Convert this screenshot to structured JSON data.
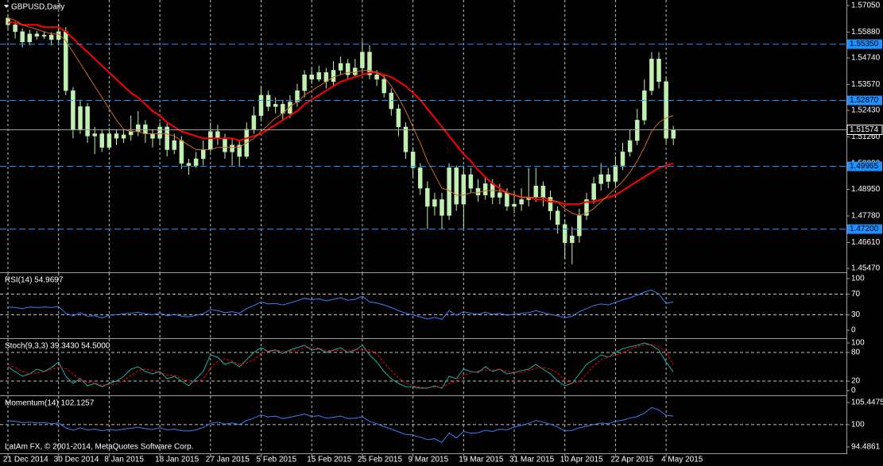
{
  "copyright": "LatAm FX, © 2001-2014, MetaQuotes Software Corp.",
  "chart_data": [
    {
      "type": "candlestick",
      "title": "GBPUSD,Daily",
      "grid": true,
      "color": "#c0f0b0",
      "categories": [
        "21 Dec 2014",
        null,
        null,
        null,
        null,
        null,
        null,
        "30 Dec 2014",
        null,
        null,
        null,
        null,
        null,
        null,
        "8 Jan 2015",
        null,
        null,
        null,
        null,
        null,
        null,
        "18 Jan 2015",
        null,
        null,
        null,
        null,
        null,
        null,
        "27 Jan 2015",
        null,
        null,
        null,
        null,
        null,
        null,
        "5 Feb 2015",
        null,
        null,
        null,
        null,
        null,
        null,
        "15 Feb 2015",
        null,
        null,
        null,
        null,
        null,
        null,
        "25 Feb 2015",
        null,
        null,
        null,
        null,
        null,
        null,
        "9 Mar 2015",
        null,
        null,
        null,
        null,
        null,
        null,
        "19 Mar 2015",
        null,
        null,
        null,
        null,
        null,
        null,
        "31 Mar 2015",
        null,
        null,
        null,
        null,
        null,
        null,
        "10 Apr 2015",
        null,
        null,
        null,
        null,
        null,
        null,
        "22 Apr 2015",
        null,
        null,
        null,
        null,
        null,
        null,
        "4 May 2015",
        null
      ],
      "open": [
        1.565,
        1.562,
        1.559,
        1.5545,
        1.558,
        1.557,
        1.5575,
        1.5555,
        1.559,
        1.533,
        1.516,
        1.526,
        1.513,
        1.514,
        1.508,
        1.514,
        1.512,
        1.5135,
        1.515,
        1.518,
        1.514,
        1.512,
        1.517,
        1.507,
        1.511,
        1.501,
        1.5,
        1.503,
        1.507,
        1.515,
        1.512,
        1.506,
        1.509,
        1.504,
        1.516,
        1.522,
        1.531,
        1.526,
        1.527,
        1.523,
        1.528,
        1.533,
        1.54,
        1.538,
        1.541,
        1.537,
        1.542,
        1.545,
        1.54,
        1.543,
        1.55,
        1.54,
        1.538,
        1.532,
        1.525,
        1.517,
        1.506,
        1.499,
        1.49,
        1.482,
        1.485,
        1.478,
        1.499,
        1.483,
        1.496,
        1.49,
        1.487,
        1.492,
        1.486,
        1.488,
        1.482,
        1.483,
        1.485,
        1.486,
        1.491,
        1.486,
        1.48,
        1.474,
        1.466,
        1.469,
        1.478,
        1.485,
        1.492,
        1.496,
        1.493,
        1.5,
        1.506,
        1.511,
        1.52,
        1.533,
        1.547,
        1.537,
        1.512
      ],
      "high": [
        1.5668,
        1.5635,
        1.5605,
        1.5598,
        1.5592,
        1.559,
        1.5588,
        1.562,
        1.561,
        1.5345,
        1.529,
        1.5275,
        1.517,
        1.516,
        1.5165,
        1.516,
        1.516,
        1.522,
        1.524,
        1.52,
        1.516,
        1.519,
        1.5185,
        1.514,
        1.513,
        1.503,
        1.506,
        1.511,
        1.519,
        1.518,
        1.514,
        1.512,
        1.511,
        1.519,
        1.526,
        1.535,
        1.533,
        1.53,
        1.529,
        1.531,
        1.536,
        1.542,
        1.543,
        1.544,
        1.543,
        1.546,
        1.548,
        1.547,
        1.547,
        1.555,
        1.553,
        1.542,
        1.54,
        1.534,
        1.527,
        1.519,
        1.508,
        1.501,
        1.493,
        1.488,
        1.488,
        1.501,
        1.5,
        1.5,
        1.499,
        1.494,
        1.495,
        1.494,
        1.492,
        1.49,
        1.488,
        1.49,
        1.499,
        1.499,
        1.493,
        1.489,
        1.482,
        1.476,
        1.473,
        1.481,
        1.488,
        1.495,
        1.501,
        1.499,
        1.504,
        1.51,
        1.516,
        1.525,
        1.538,
        1.55,
        1.55,
        1.539,
        1.5175
      ],
      "low": [
        1.56,
        1.556,
        1.552,
        1.553,
        1.5555,
        1.5558,
        1.553,
        1.554,
        1.531,
        1.512,
        1.514,
        1.51,
        1.505,
        1.506,
        1.507,
        1.509,
        1.51,
        1.511,
        1.513,
        1.51,
        1.508,
        1.509,
        1.504,
        1.505,
        1.4985,
        1.496,
        1.499,
        1.5,
        1.506,
        1.509,
        1.503,
        1.5,
        1.4995,
        1.503,
        1.514,
        1.52,
        1.524,
        1.523,
        1.52,
        1.521,
        1.526,
        1.53,
        1.536,
        1.537,
        1.534,
        1.535,
        1.54,
        1.538,
        1.539,
        1.541,
        1.538,
        1.535,
        1.53,
        1.522,
        1.513,
        1.503,
        1.495,
        1.487,
        1.472,
        1.478,
        1.472,
        1.476,
        1.48,
        1.472,
        1.488,
        1.484,
        1.485,
        1.483,
        1.483,
        1.48,
        1.479,
        1.48,
        1.482,
        1.484,
        1.482,
        1.476,
        1.47,
        1.459,
        1.4565,
        1.466,
        1.476,
        1.483,
        1.489,
        1.49,
        1.491,
        1.498,
        1.504,
        1.509,
        1.518,
        1.531,
        1.534,
        1.51,
        1.509
      ],
      "close": [
        1.562,
        1.559,
        1.5545,
        1.558,
        1.557,
        1.5575,
        1.5555,
        1.559,
        1.533,
        1.516,
        1.526,
        1.513,
        1.514,
        1.508,
        1.514,
        1.512,
        1.5135,
        1.515,
        1.518,
        1.514,
        1.512,
        1.517,
        1.507,
        1.511,
        1.501,
        1.5,
        1.503,
        1.507,
        1.515,
        1.512,
        1.506,
        1.509,
        1.504,
        1.516,
        1.522,
        1.531,
        1.526,
        1.527,
        1.523,
        1.528,
        1.533,
        1.54,
        1.538,
        1.541,
        1.537,
        1.542,
        1.545,
        1.54,
        1.543,
        1.55,
        1.54,
        1.538,
        1.532,
        1.525,
        1.517,
        1.506,
        1.499,
        1.49,
        1.482,
        1.485,
        1.478,
        1.499,
        1.483,
        1.496,
        1.49,
        1.487,
        1.492,
        1.486,
        1.488,
        1.482,
        1.483,
        1.485,
        1.486,
        1.491,
        1.486,
        1.48,
        1.474,
        1.466,
        1.469,
        1.478,
        1.485,
        1.492,
        1.496,
        1.493,
        1.5,
        1.506,
        1.511,
        1.52,
        1.533,
        1.547,
        1.537,
        1.512,
        1.5157
      ],
      "lines": [
        {
          "color": "#ff0000",
          "width": 2,
          "values": [
            1.563,
            1.563,
            1.562,
            1.562,
            1.562,
            1.561,
            1.561,
            1.561,
            1.559,
            1.556,
            1.553,
            1.55,
            1.547,
            1.544,
            1.541,
            1.538,
            1.535,
            1.532,
            1.53,
            1.527,
            1.524,
            1.522,
            1.519,
            1.517,
            1.515,
            1.514,
            1.513,
            1.512,
            1.512,
            1.512,
            1.512,
            1.512,
            1.511,
            1.512,
            1.513,
            1.514,
            1.516,
            1.518,
            1.52,
            1.522,
            1.524,
            1.527,
            1.529,
            1.531,
            1.533,
            1.535,
            1.537,
            1.538,
            1.539,
            1.54,
            1.541,
            1.541,
            1.54,
            1.539,
            1.537,
            1.535,
            1.532,
            1.529,
            1.525,
            1.521,
            1.517,
            1.513,
            1.509,
            1.505,
            1.502,
            1.498,
            1.495,
            1.492,
            1.49,
            1.488,
            1.487,
            1.486,
            1.486,
            1.485,
            1.485,
            1.484,
            1.484,
            1.483,
            1.483,
            1.483,
            1.484,
            1.484,
            1.485,
            1.486,
            1.487,
            1.489,
            1.491,
            1.493,
            1.495,
            1.497,
            1.499,
            1.5,
            1.501
          ]
        },
        {
          "color": "#d2691e",
          "width": 1,
          "values": [
            1.565,
            1.564,
            1.562,
            1.561,
            1.56,
            1.559,
            1.558,
            1.558,
            1.555,
            1.55,
            1.545,
            1.54,
            1.535,
            1.53,
            1.525,
            1.52,
            1.516,
            1.515,
            1.515,
            1.514,
            1.514,
            1.514,
            1.514,
            1.513,
            1.511,
            1.509,
            1.507,
            1.507,
            1.507,
            1.508,
            1.508,
            1.508,
            1.508,
            1.51,
            1.512,
            1.515,
            1.518,
            1.521,
            1.523,
            1.526,
            1.528,
            1.531,
            1.533,
            1.535,
            1.537,
            1.539,
            1.54,
            1.541,
            1.541,
            1.542,
            1.542,
            1.541,
            1.539,
            1.535,
            1.53,
            1.524,
            1.517,
            1.51,
            1.502,
            1.496,
            1.49,
            1.489,
            1.487,
            1.487,
            1.488,
            1.488,
            1.489,
            1.489,
            1.489,
            1.488,
            1.487,
            1.486,
            1.486,
            1.486,
            1.486,
            1.485,
            1.484,
            1.481,
            1.479,
            1.478,
            1.479,
            1.481,
            1.484,
            1.487,
            1.49,
            1.493,
            1.497,
            1.502,
            1.508,
            1.515,
            1.519,
            1.521,
            1.522
          ]
        }
      ],
      "levels": [
        {
          "value": 1.5535,
          "label": "1.55350"
        },
        {
          "value": 1.5287,
          "label": "1.52870"
        },
        {
          "value": 1.49965,
          "label": "1.49965"
        },
        {
          "value": 1.472,
          "label": "1.47200"
        }
      ],
      "level_color": "#1e90ff",
      "last_price": {
        "value": 1.51574,
        "label": "1.51574"
      },
      "ylim": [
        1.4547,
        1.5705
      ],
      "yticks": [
        {
          "value": 1.5705,
          "label": "1.57050"
        },
        {
          "value": 1.5588,
          "label": "1.55880"
        },
        {
          "value": 1.5474,
          "label": "1.54740"
        },
        {
          "value": 1.5357,
          "label": "1.53570"
        },
        {
          "value": 1.5243,
          "label": "1.52430"
        },
        {
          "value": 1.5126,
          "label": "1.51260"
        },
        {
          "value": 1.5009,
          "label": "1.50090"
        },
        {
          "value": 1.4895,
          "label": "1.48950"
        },
        {
          "value": 1.4778,
          "label": "1.47780"
        },
        {
          "value": 1.4661,
          "label": "1.46610"
        },
        {
          "value": 1.4547,
          "label": "1.45470"
        }
      ]
    },
    {
      "type": "line",
      "title": "RSI(14) 54.9697",
      "color": "#3c7dff",
      "ylim": [
        0,
        100
      ],
      "yticks": [
        100,
        70,
        30,
        0
      ],
      "levels": [
        70,
        30
      ],
      "values": [
        45,
        44,
        42,
        45,
        44,
        45,
        44,
        46,
        33,
        28,
        34,
        27,
        28,
        24,
        29,
        30,
        32,
        33,
        35,
        32,
        30,
        34,
        28,
        31,
        27,
        26,
        29,
        32,
        40,
        38,
        34,
        36,
        33,
        42,
        48,
        55,
        51,
        52,
        49,
        53,
        57,
        62,
        59,
        61,
        57,
        60,
        63,
        58,
        60,
        66,
        55,
        53,
        49,
        44,
        38,
        33,
        30,
        26,
        22,
        25,
        21,
        38,
        29,
        36,
        33,
        31,
        35,
        31,
        33,
        29,
        31,
        33,
        34,
        38,
        34,
        31,
        28,
        24,
        27,
        36,
        42,
        48,
        51,
        49,
        54,
        59,
        63,
        68,
        74,
        78,
        70,
        52,
        54.9697
      ]
    },
    {
      "type": "line",
      "title": "Stoch(9,3,3) 39.3430 54.5000",
      "ylim": [
        0,
        100
      ],
      "yticks": [
        100,
        80,
        20,
        0
      ],
      "levels": [
        80,
        20
      ],
      "series": [
        {
          "color": "#20b2aa",
          "values": [
            50,
            40,
            30,
            35,
            45,
            40,
            48,
            60,
            30,
            15,
            25,
            10,
            15,
            8,
            15,
            20,
            30,
            45,
            50,
            40,
            35,
            40,
            25,
            30,
            20,
            10,
            25,
            40,
            75,
            70,
            55,
            60,
            50,
            65,
            80,
            90,
            82,
            85,
            78,
            85,
            90,
            95,
            85,
            88,
            80,
            85,
            90,
            80,
            85,
            95,
            75,
            60,
            40,
            25,
            15,
            8,
            8,
            5,
            5,
            10,
            5,
            30,
            25,
            45,
            40,
            38,
            50,
            40,
            45,
            35,
            38,
            42,
            45,
            55,
            45,
            35,
            20,
            10,
            15,
            35,
            55,
            65,
            75,
            70,
            80,
            88,
            92,
            95,
            100,
            95,
            85,
            60,
            39.343
          ]
        },
        {
          "color": "#ff0000",
          "dashed": true,
          "values": [
            55,
            48,
            40,
            35,
            37,
            40,
            44,
            49,
            46,
            35,
            23,
            17,
            17,
            11,
            13,
            14,
            21,
            32,
            42,
            45,
            42,
            38,
            33,
            32,
            25,
            20,
            18,
            25,
            47,
            62,
            67,
            62,
            55,
            58,
            65,
            78,
            84,
            86,
            82,
            83,
            84,
            90,
            90,
            89,
            84,
            84,
            85,
            85,
            85,
            87,
            85,
            77,
            58,
            42,
            27,
            16,
            10,
            7,
            6,
            7,
            7,
            15,
            20,
            33,
            37,
            41,
            43,
            43,
            45,
            40,
            39,
            38,
            42,
            47,
            48,
            45,
            37,
            22,
            15,
            20,
            35,
            52,
            65,
            70,
            75,
            79,
            87,
            92,
            96,
            97,
            93,
            80,
            54.5
          ]
        }
      ]
    },
    {
      "type": "line",
      "title": "Momentum(14) 102.1257",
      "color": "#3c7dff",
      "ylim": [
        94.4861,
        105.4475
      ],
      "yticks": [
        105.4475,
        100,
        94.4861
      ],
      "levels": [
        100
      ],
      "values": [
        101.0,
        100.8,
        100.5,
        100.6,
        100.4,
        100.5,
        100.2,
        100.4,
        99.2,
        98.6,
        99.2,
        98.7,
        98.9,
        98.5,
        98.8,
        98.6,
        98.9,
        99.1,
        99.3,
        99.0,
        98.8,
        99.2,
        98.7,
        98.9,
        98.5,
        98.4,
        98.7,
        99.3,
        100.3,
        100.6,
        100.1,
        100.4,
        100.0,
        101.0,
        101.6,
        102.4,
        101.9,
        102.1,
        101.5,
        101.8,
        102.2,
        102.6,
        102.0,
        102.2,
        101.6,
        101.8,
        102.1,
        101.5,
        101.6,
        101.9,
        100.8,
        100.2,
        99.5,
        98.9,
        98.2,
        97.6,
        97.4,
        96.9,
        96.3,
        96.5,
        95.6,
        97.9,
        96.7,
        98.3,
        97.9,
        98.0,
        98.6,
        98.3,
        98.9,
        98.7,
        99.4,
        99.8,
        100.3,
        101.0,
        100.6,
        100.1,
        99.4,
        98.4,
        98.6,
        99.2,
        99.6,
        100.0,
        100.4,
        100.2,
        100.8,
        101.1,
        101.6,
        102.0,
        102.8,
        104.2,
        103.6,
        102.3,
        102.1257
      ]
    }
  ]
}
